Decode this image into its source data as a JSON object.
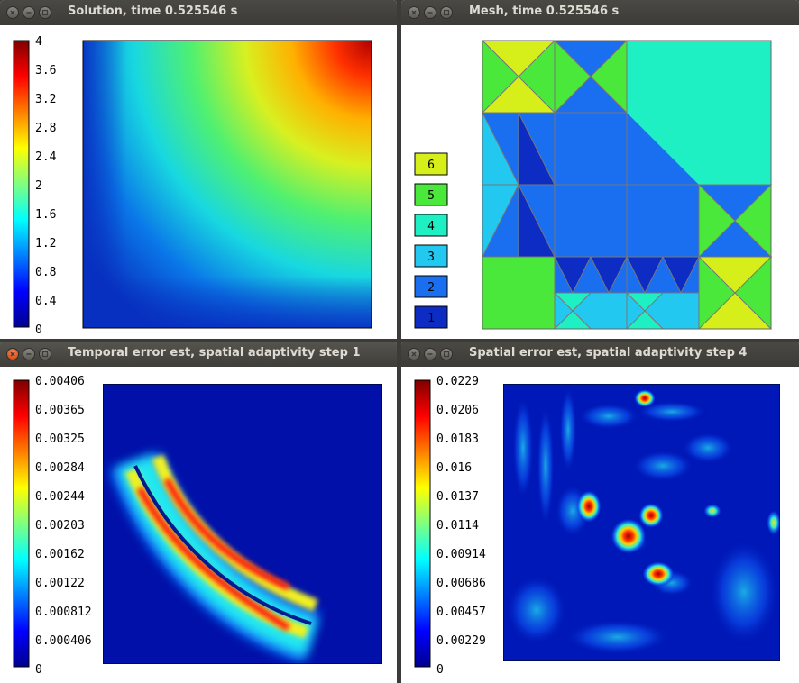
{
  "windows": {
    "solution": {
      "title": "Solution, time 0.525546 s",
      "colorbar": [
        "4",
        "3.6",
        "3.2",
        "2.8",
        "2.4",
        "2",
        "1.6",
        "1.2",
        "0.8",
        "0.4",
        "0"
      ]
    },
    "mesh": {
      "title": "Mesh, time 0.525546 s",
      "legend": [
        {
          "label": "6",
          "color": "#d6ef1a"
        },
        {
          "label": "5",
          "color": "#4ae83a"
        },
        {
          "label": "4",
          "color": "#1ef0c4"
        },
        {
          "label": "3",
          "color": "#22c8f0"
        },
        {
          "label": "2",
          "color": "#1a6ef0"
        },
        {
          "label": "1",
          "color": "#0c2cc4"
        }
      ]
    },
    "temporal": {
      "title": "Temporal error est, spatial adaptivity step 1",
      "colorbar": [
        "0.00406",
        "0.00365",
        "0.00325",
        "0.00284",
        "0.00244",
        "0.00203",
        "0.00162",
        "0.00122",
        "0.000812",
        "0.000406",
        "0"
      ]
    },
    "spatial": {
      "title": "Spatial error est, spatial adaptivity step 4",
      "colorbar": [
        "0.0229",
        "0.0206",
        "0.0183",
        "0.016",
        "0.0137",
        "0.0114",
        "0.00914",
        "0.00686",
        "0.00457",
        "0.00229",
        "0"
      ]
    }
  },
  "colors": {
    "titlebar": "#3c3b37",
    "desktop": "#3c3b37",
    "close_active": "#e35a22"
  },
  "icons": [
    "close-icon",
    "minimize-icon",
    "maximize-icon"
  ]
}
